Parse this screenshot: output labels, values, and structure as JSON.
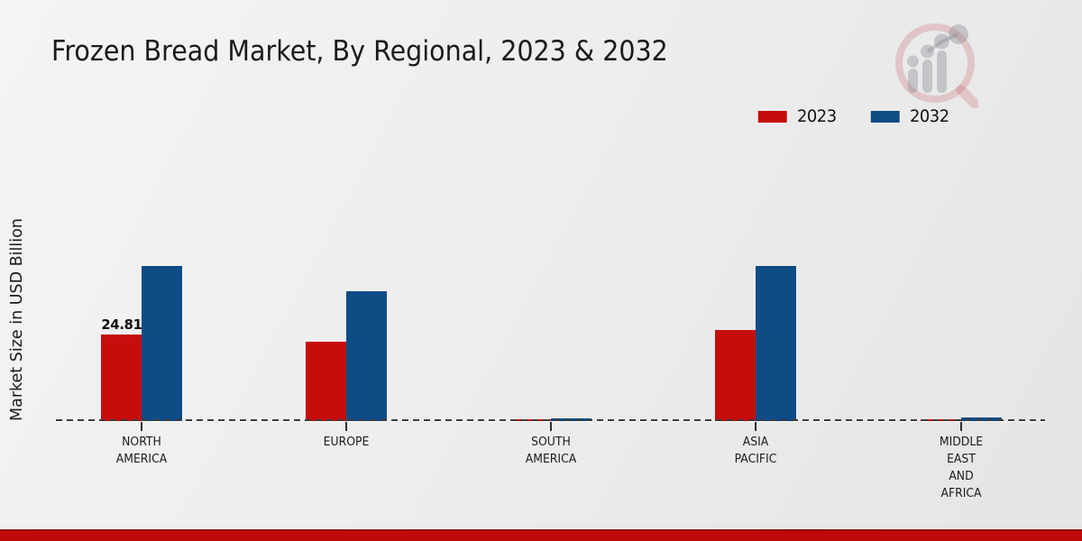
{
  "title": "Frozen Bread Market, By Regional, 2023 & 2032",
  "watermark": "market-research-future-logo",
  "footer": {
    "accent_color": "#c00909"
  },
  "legend": [
    {
      "label": "2023",
      "color": "#c50d0c"
    },
    {
      "label": "2032",
      "color": "#0e4c86"
    }
  ],
  "chart_data": {
    "type": "bar",
    "title": "Frozen Bread Market, By Regional, 2023 & 2032",
    "xlabel": "",
    "ylabel": "Market Size in USD Billion",
    "categories": [
      "NORTH AMERICA",
      "EUROPE",
      "SOUTH AMERICA",
      "ASIA PACIFIC",
      "MIDDLE EAST AND AFRICA"
    ],
    "series": [
      {
        "name": "2023",
        "color": "#c50d0c",
        "values": [
          24.81,
          22.8,
          0.5,
          26.1,
          0.5
        ]
      },
      {
        "name": "2032",
        "color": "#0e4c86",
        "values": [
          44.5,
          37.3,
          0.8,
          44.5,
          1.0
        ]
      }
    ],
    "data_labels": [
      {
        "series": "2023",
        "category": "NORTH AMERICA",
        "text": "24.81"
      }
    ],
    "ylim": [
      0,
      50
    ],
    "grid": false,
    "legend_position": "top-right",
    "baseline_style": "dashed-zero-line"
  }
}
